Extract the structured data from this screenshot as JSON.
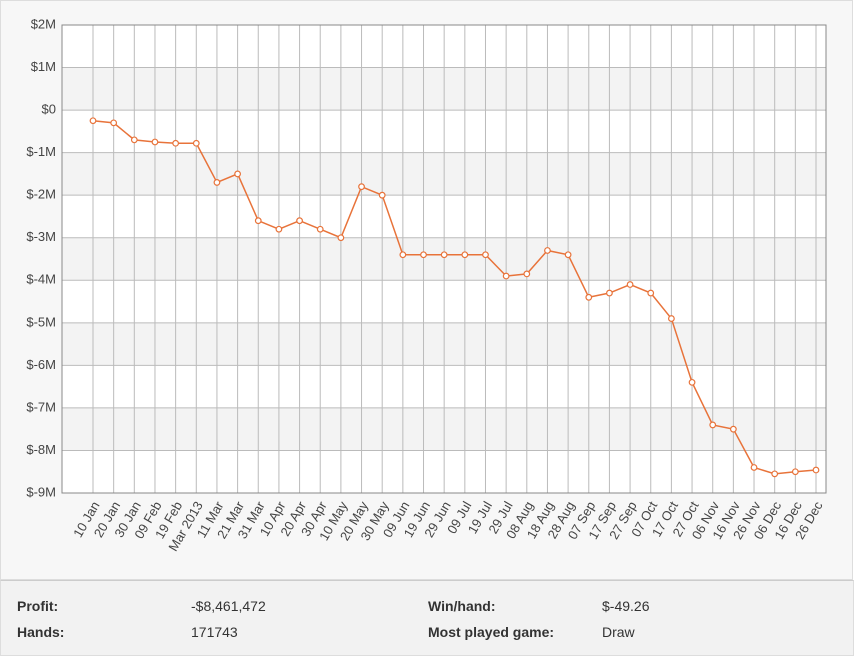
{
  "chart_data": {
    "type": "line",
    "categories": [
      "10 Jan",
      "20 Jan",
      "30 Jan",
      "09 Feb",
      "19 Feb",
      "Mar 2013",
      "11 Mar",
      "21 Mar",
      "31 Mar",
      "10 Apr",
      "20 Apr",
      "30 Apr",
      "10 May",
      "20 May",
      "30 May",
      "09 Jun",
      "19 Jun",
      "29 Jun",
      "09 Jul",
      "19 Jul",
      "29 Jul",
      "08 Aug",
      "18 Aug",
      "28 Aug",
      "07 Sep",
      "17 Sep",
      "27 Sep",
      "07 Oct",
      "17 Oct",
      "27 Oct",
      "06 Nov",
      "16 Nov",
      "26 Nov",
      "06 Dec",
      "16 Dec",
      "26 Dec"
    ],
    "series": [
      {
        "color": "#e8733a",
        "values": [
          -250000,
          -300000,
          -700000,
          -750000,
          -780000,
          -780000,
          -1700000,
          -1500000,
          -2600000,
          -2800000,
          -2600000,
          -2800000,
          -3000000,
          -1800000,
          -2000000,
          -3400000,
          -3400000,
          -3400000,
          -3400000,
          -3400000,
          -3900000,
          -3850000,
          -3300000,
          -3400000,
          -4400000,
          -4300000,
          -4100000,
          -4300000,
          -4900000,
          -6400000,
          -7400000,
          -7500000,
          -8400000,
          -8550000,
          -8500000,
          -8460000
        ]
      }
    ],
    "ylim": [
      -9000000,
      2000000
    ],
    "yticks": [
      {
        "value": -9000000,
        "label": "$-9M"
      },
      {
        "value": -8000000,
        "label": "$-8M"
      },
      {
        "value": -7000000,
        "label": "$-7M"
      },
      {
        "value": -6000000,
        "label": "$-6M"
      },
      {
        "value": -5000000,
        "label": "$-5M"
      },
      {
        "value": -4000000,
        "label": "$-4M"
      },
      {
        "value": -3000000,
        "label": "$-3M"
      },
      {
        "value": -2000000,
        "label": "$-2M"
      },
      {
        "value": -1000000,
        "label": "$-1M"
      },
      {
        "value": 0,
        "label": "$0"
      },
      {
        "value": 1000000,
        "label": "$1M"
      },
      {
        "value": 2000000,
        "label": "$2M"
      }
    ],
    "grid": true
  },
  "summary": {
    "rows": [
      [
        "Profit:",
        "-$8,461,472",
        "Win/hand:",
        "$-49.26"
      ],
      [
        "Hands:",
        "171743",
        "Most played game:",
        "Draw"
      ]
    ]
  }
}
